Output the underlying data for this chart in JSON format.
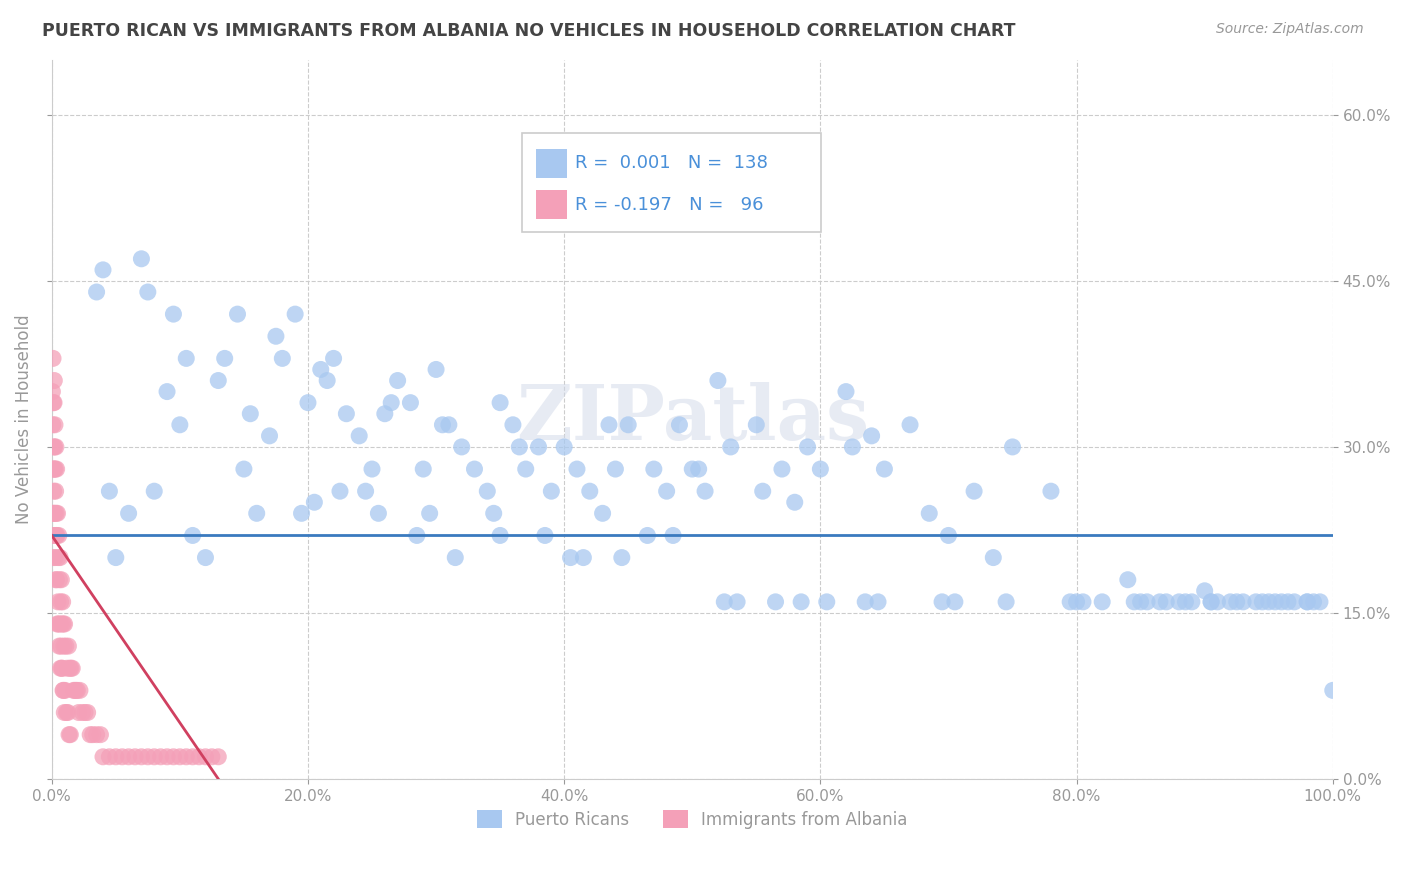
{
  "title": "PUERTO RICAN VS IMMIGRANTS FROM ALBANIA NO VEHICLES IN HOUSEHOLD CORRELATION CHART",
  "source": "Source: ZipAtlas.com",
  "ylabel": "No Vehicles in Household",
  "xlim": [
    0.0,
    100.0
  ],
  "ylim": [
    0.0,
    65.0
  ],
  "xticks": [
    0.0,
    20.0,
    40.0,
    60.0,
    80.0,
    100.0
  ],
  "xticklabels": [
    "0.0%",
    "20.0%",
    "40.0%",
    "60.0%",
    "80.0%",
    "100.0%"
  ],
  "yticks": [
    0.0,
    15.0,
    30.0,
    45.0,
    60.0
  ],
  "yticklabels": [
    "0.0%",
    "15.0%",
    "30.0%",
    "45.0%",
    "60.0%"
  ],
  "blue_color": "#a8c8f0",
  "pink_color": "#f4a0b8",
  "blue_line_color": "#3a7abf",
  "pink_line_color": "#d04060",
  "title_color": "#444444",
  "axis_color": "#999999",
  "right_axis_color": "#4a90d9",
  "watermark": "ZIPatlas",
  "grid_color": "#cccccc",
  "blue_hline_y": 22.0,
  "pink_line_x0": 0.0,
  "pink_line_y0": 22.0,
  "pink_line_x1": 13.0,
  "pink_line_y1": 0.0,
  "blue_scatter_x": [
    4.0,
    7.5,
    9.0,
    10.5,
    13.0,
    14.5,
    15.5,
    17.0,
    18.0,
    19.0,
    20.0,
    21.0,
    22.0,
    23.0,
    24.0,
    25.0,
    26.0,
    27.0,
    28.0,
    29.0,
    30.0,
    31.0,
    32.0,
    33.0,
    34.0,
    35.0,
    36.0,
    37.0,
    38.0,
    39.0,
    40.0,
    41.0,
    42.0,
    43.0,
    44.0,
    45.0,
    47.0,
    48.0,
    49.0,
    50.0,
    51.0,
    52.0,
    53.0,
    55.0,
    57.0,
    58.0,
    59.0,
    60.0,
    62.0,
    64.0,
    65.0,
    67.0,
    70.0,
    72.0,
    75.0,
    78.0,
    80.0,
    82.0,
    84.0,
    85.0,
    87.0,
    88.0,
    89.0,
    90.0,
    91.0,
    92.0,
    93.0,
    94.0,
    95.0,
    96.0,
    97.0,
    98.0,
    99.0,
    100.0,
    5.0,
    6.0,
    8.0,
    11.0,
    12.0,
    16.0,
    20.5,
    22.5,
    25.5,
    28.5,
    31.5,
    34.5,
    38.5,
    41.5,
    44.5,
    48.5,
    52.5,
    56.5,
    60.5,
    64.5,
    70.5,
    74.5,
    80.5,
    84.5,
    86.5,
    88.5,
    90.5,
    92.5,
    94.5,
    96.5,
    98.5,
    3.5,
    7.0,
    9.5,
    13.5,
    17.5,
    21.5,
    26.5,
    30.5,
    36.5,
    43.5,
    50.5,
    55.5,
    62.5,
    68.5,
    73.5,
    79.5,
    85.5,
    90.5,
    95.5,
    98.0,
    4.5,
    10.0,
    15.0,
    19.5,
    24.5,
    29.5,
    35.0,
    40.5,
    46.5,
    53.5,
    58.5,
    63.5,
    69.5
  ],
  "blue_scatter_y": [
    46.0,
    44.0,
    35.0,
    38.0,
    36.0,
    42.0,
    33.0,
    31.0,
    38.0,
    42.0,
    34.0,
    37.0,
    38.0,
    33.0,
    31.0,
    28.0,
    33.0,
    36.0,
    34.0,
    28.0,
    37.0,
    32.0,
    30.0,
    28.0,
    26.0,
    34.0,
    32.0,
    28.0,
    30.0,
    26.0,
    30.0,
    28.0,
    26.0,
    24.0,
    28.0,
    32.0,
    28.0,
    26.0,
    32.0,
    28.0,
    26.0,
    36.0,
    30.0,
    32.0,
    28.0,
    25.0,
    30.0,
    28.0,
    35.0,
    31.0,
    28.0,
    32.0,
    22.0,
    26.0,
    30.0,
    26.0,
    16.0,
    16.0,
    18.0,
    16.0,
    16.0,
    16.0,
    16.0,
    17.0,
    16.0,
    16.0,
    16.0,
    16.0,
    16.0,
    16.0,
    16.0,
    16.0,
    16.0,
    8.0,
    20.0,
    24.0,
    26.0,
    22.0,
    20.0,
    24.0,
    25.0,
    26.0,
    24.0,
    22.0,
    20.0,
    24.0,
    22.0,
    20.0,
    20.0,
    22.0,
    16.0,
    16.0,
    16.0,
    16.0,
    16.0,
    16.0,
    16.0,
    16.0,
    16.0,
    16.0,
    16.0,
    16.0,
    16.0,
    16.0,
    16.0,
    44.0,
    47.0,
    42.0,
    38.0,
    40.0,
    36.0,
    34.0,
    32.0,
    30.0,
    32.0,
    28.0,
    26.0,
    30.0,
    24.0,
    20.0,
    16.0,
    16.0,
    16.0,
    16.0,
    16.0,
    26.0,
    32.0,
    28.0,
    24.0,
    26.0,
    24.0,
    22.0,
    20.0,
    22.0,
    16.0,
    16.0,
    16.0,
    16.0
  ],
  "pink_scatter_x": [
    0.05,
    0.08,
    0.1,
    0.12,
    0.14,
    0.16,
    0.18,
    0.2,
    0.22,
    0.25,
    0.28,
    0.3,
    0.32,
    0.35,
    0.38,
    0.4,
    0.45,
    0.5,
    0.55,
    0.6,
    0.65,
    0.7,
    0.75,
    0.8,
    0.85,
    0.9,
    0.95,
    1.0,
    1.1,
    1.2,
    1.3,
    1.4,
    1.5,
    1.6,
    1.7,
    1.8,
    1.9,
    2.0,
    2.1,
    2.2,
    2.4,
    2.6,
    2.8,
    3.0,
    3.2,
    3.5,
    3.8,
    4.0,
    4.5,
    5.0,
    5.5,
    6.0,
    6.5,
    7.0,
    7.5,
    8.0,
    8.5,
    9.0,
    9.5,
    10.0,
    10.5,
    11.0,
    11.5,
    12.0,
    12.5,
    13.0,
    0.06,
    0.09,
    0.11,
    0.13,
    0.15,
    0.17,
    0.19,
    0.21,
    0.24,
    0.27,
    0.31,
    0.34,
    0.37,
    0.42,
    0.48,
    0.52,
    0.58,
    0.62,
    0.68,
    0.72,
    0.78,
    0.82,
    0.88,
    0.92,
    0.98,
    1.05,
    1.15,
    1.25,
    1.35,
    1.45
  ],
  "pink_scatter_y": [
    35.0,
    32.0,
    38.0,
    34.0,
    30.0,
    28.0,
    34.0,
    36.0,
    30.0,
    32.0,
    28.0,
    26.0,
    30.0,
    24.0,
    28.0,
    22.0,
    24.0,
    20.0,
    22.0,
    18.0,
    20.0,
    16.0,
    18.0,
    14.0,
    16.0,
    14.0,
    12.0,
    14.0,
    12.0,
    10.0,
    12.0,
    10.0,
    10.0,
    10.0,
    8.0,
    8.0,
    8.0,
    8.0,
    6.0,
    8.0,
    6.0,
    6.0,
    6.0,
    4.0,
    4.0,
    4.0,
    4.0,
    2.0,
    2.0,
    2.0,
    2.0,
    2.0,
    2.0,
    2.0,
    2.0,
    2.0,
    2.0,
    2.0,
    2.0,
    2.0,
    2.0,
    2.0,
    2.0,
    2.0,
    2.0,
    2.0,
    22.0,
    28.0,
    24.0,
    20.0,
    26.0,
    24.0,
    28.0,
    22.0,
    24.0,
    20.0,
    18.0,
    22.0,
    18.0,
    14.0,
    16.0,
    14.0,
    12.0,
    14.0,
    10.0,
    12.0,
    10.0,
    10.0,
    8.0,
    8.0,
    6.0,
    8.0,
    6.0,
    6.0,
    4.0,
    4.0
  ]
}
